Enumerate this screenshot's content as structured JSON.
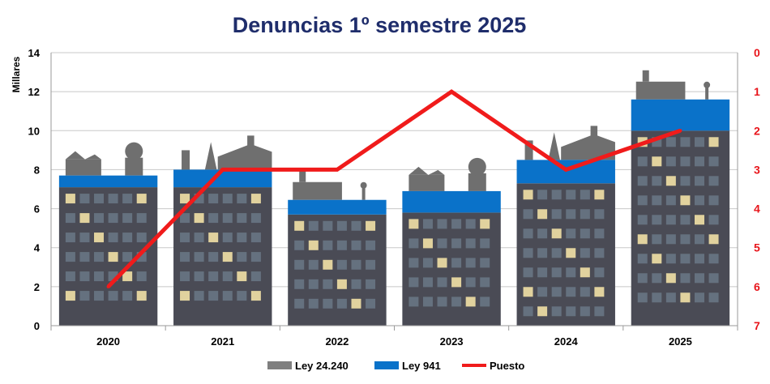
{
  "chart_data": {
    "type": "bar",
    "title": "Denuncias 1º semestre 2025",
    "ylabel": "Millares",
    "categories": [
      "2020",
      "2021",
      "2022",
      "2023",
      "2024",
      "2025"
    ],
    "ylim": [
      0,
      14
    ],
    "yticks": [
      "0",
      "2",
      "4",
      "6",
      "8",
      "10",
      "12",
      "14"
    ],
    "y2lim": [
      7,
      0
    ],
    "y2ticks": [
      "0",
      "1",
      "2",
      "3",
      "4",
      "5",
      "6",
      "7"
    ],
    "stacked": true,
    "grid": true,
    "legend_position": "bottom",
    "series": [
      {
        "name": "Ley 24.240",
        "type": "bar",
        "axis": "left",
        "color": "#7f7f7f",
        "values": [
          7.1,
          7.1,
          5.7,
          5.8,
          7.3,
          10.0
        ]
      },
      {
        "name": "Ley 941",
        "type": "bar",
        "axis": "left",
        "color": "#0a72c9",
        "values": [
          0.6,
          0.9,
          0.75,
          1.1,
          1.2,
          1.6
        ]
      },
      {
        "name": "Puesto",
        "type": "line",
        "axis": "right",
        "color": "#f01b1b",
        "values": [
          6,
          3,
          3,
          1,
          3,
          2
        ]
      }
    ]
  }
}
